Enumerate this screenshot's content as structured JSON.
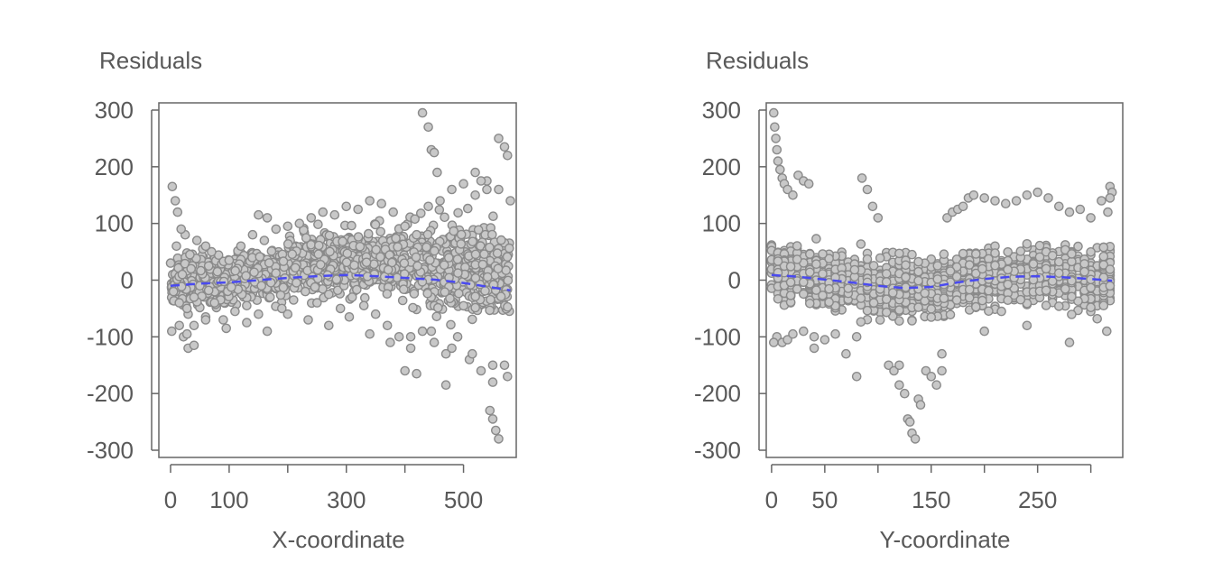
{
  "colors": {
    "points_fill": "#c8c8c8",
    "points_stroke": "#8a8a8a",
    "trend": "#4a4af0",
    "axis": "#666666",
    "text": "#595959"
  },
  "chart_data": [
    {
      "type": "scatter",
      "ylabel": "Residuals",
      "xlabel": "X-coordinate",
      "xlim": [
        -20,
        590
      ],
      "ylim": [
        -300,
        300
      ],
      "x_ticks": [
        0,
        100,
        200,
        300,
        400,
        500
      ],
      "x_tick_labels": [
        "0",
        "100",
        "",
        "300",
        "",
        "500"
      ],
      "y_ticks": [
        300,
        200,
        100,
        0,
        -100,
        -200,
        -300
      ],
      "y_tick_labels": [
        "300",
        "200",
        "100",
        "0",
        "-100",
        "-200",
        "-300"
      ],
      "grid": false,
      "trend_style": "dashed",
      "trend": {
        "x": [
          0,
          50,
          100,
          150,
          200,
          250,
          300,
          350,
          400,
          450,
          500,
          550,
          580
        ],
        "y": [
          -10,
          -6,
          -4,
          0,
          4,
          7,
          9,
          7,
          4,
          1,
          -5,
          -13,
          -18
        ]
      },
      "points": {
        "x": [
          0,
          5,
          10,
          15,
          20,
          25,
          30,
          35,
          40,
          3,
          8,
          12,
          18,
          22,
          28,
          33,
          40,
          45,
          50,
          55,
          60,
          65,
          70,
          75,
          80,
          90,
          100,
          110,
          120,
          130,
          140,
          150,
          160,
          170,
          180,
          190,
          200,
          210,
          220,
          230,
          240,
          250,
          260,
          270,
          280,
          290,
          300,
          310,
          320,
          330,
          340,
          350,
          360,
          370,
          380,
          390,
          400,
          410,
          420,
          430,
          440,
          450,
          460,
          470,
          480,
          490,
          500,
          510,
          520,
          530,
          540,
          550,
          560,
          570,
          580,
          2,
          15,
          28,
          60,
          95,
          130,
          165,
          200,
          235,
          270,
          305,
          340,
          375,
          410,
          445,
          480,
          515,
          550,
          575,
          430,
          440,
          445,
          450,
          455,
          560,
          570,
          575,
          545,
          550,
          555,
          560,
          520,
          530,
          540,
          470,
          400,
          420,
          150,
          165,
          30,
          40,
          60
        ],
        "y": [
          30,
          -20,
          60,
          -40,
          10,
          80,
          -60,
          20,
          -80,
          165,
          140,
          120,
          90,
          -100,
          -50,
          45,
          -30,
          70,
          -10,
          55,
          -65,
          25,
          50,
          -40,
          15,
          -70,
          35,
          -55,
          60,
          -45,
          80,
          -60,
          70,
          -30,
          90,
          -50,
          95,
          -35,
          100,
          -20,
          110,
          -40,
          120,
          -25,
          115,
          -50,
          130,
          -30,
          125,
          -45,
          140,
          -60,
          135,
          -80,
          120,
          -100,
          95,
          -120,
          80,
          -90,
          130,
          -110,
          140,
          -130,
          160,
          -100,
          170,
          -140,
          150,
          -160,
          175,
          -180,
          160,
          -150,
          140,
          -90,
          -80,
          -95,
          -70,
          -85,
          -75,
          -90,
          -60,
          -70,
          -80,
          -65,
          -95,
          -110,
          -100,
          -90,
          -120,
          -130,
          -150,
          -170,
          295,
          270,
          230,
          225,
          190,
          250,
          235,
          220,
          -230,
          -245,
          -265,
          -280,
          190,
          175,
          160,
          -185,
          -160,
          -165,
          115,
          110,
          -120,
          -115,
          60
        ],
        "n_background": 1400
      }
    },
    {
      "type": "scatter",
      "ylabel": "Residuals",
      "xlabel": "Y-coordinate",
      "xlim": [
        -5,
        330
      ],
      "ylim": [
        -300,
        300
      ],
      "x_ticks": [
        0,
        50,
        100,
        150,
        200,
        250,
        300
      ],
      "x_tick_labels": [
        "0",
        "50",
        "",
        "150",
        "",
        "250",
        ""
      ],
      "y_ticks": [
        300,
        200,
        100,
        0,
        -100,
        -200,
        -300
      ],
      "y_tick_labels": [
        "300",
        "200",
        "100",
        "0",
        "-100",
        "-200",
        "-300"
      ],
      "grid": false,
      "trend_style": "dashed",
      "trend": {
        "x": [
          0,
          25,
          50,
          75,
          100,
          125,
          150,
          175,
          200,
          225,
          250,
          275,
          300,
          320
        ],
        "y": [
          9,
          6,
          1,
          -4,
          -10,
          -14,
          -12,
          -4,
          2,
          6,
          7,
          5,
          2,
          -1
        ]
      },
      "points": {
        "x": [
          2,
          3,
          4,
          5,
          6,
          8,
          10,
          12,
          15,
          20,
          25,
          30,
          35,
          5,
          10,
          15,
          20,
          30,
          40,
          50,
          60,
          70,
          80,
          85,
          90,
          95,
          100,
          110,
          115,
          120,
          125,
          128,
          130,
          132,
          135,
          138,
          140,
          145,
          150,
          155,
          160,
          165,
          170,
          175,
          180,
          185,
          190,
          200,
          210,
          220,
          230,
          240,
          250,
          260,
          270,
          280,
          290,
          300,
          310,
          318,
          320,
          318,
          316,
          2,
          40,
          80,
          120,
          160,
          200,
          240,
          280,
          315
        ],
        "y": [
          295,
          270,
          250,
          230,
          210,
          195,
          180,
          170,
          160,
          150,
          185,
          175,
          170,
          -100,
          -110,
          -105,
          -95,
          -90,
          -100,
          -105,
          -95,
          -130,
          -170,
          180,
          160,
          130,
          110,
          -150,
          -160,
          -185,
          -200,
          -245,
          -250,
          -270,
          -280,
          -210,
          -220,
          -160,
          -170,
          -185,
          -160,
          110,
          120,
          125,
          130,
          145,
          150,
          145,
          140,
          135,
          140,
          150,
          155,
          145,
          130,
          120,
          125,
          110,
          140,
          165,
          155,
          145,
          120,
          -110,
          -120,
          -100,
          -150,
          -130,
          -90,
          -80,
          -110,
          -90
        ],
        "n_background": 1400
      }
    }
  ]
}
